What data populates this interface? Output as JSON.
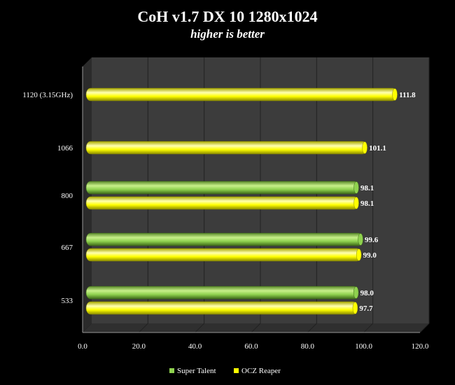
{
  "chart_data": {
    "type": "bar",
    "orientation": "horizontal",
    "title": "CoH v1.7 DX 10 1280x1024",
    "subtitle": "higher is better",
    "categories": [
      "1120 (3.15GHz)",
      "1066",
      "800",
      "667",
      "533"
    ],
    "series": [
      {
        "name": "Super Talent",
        "values": [
          null,
          null,
          98.1,
          99.6,
          98.0
        ],
        "labels": [
          "",
          "",
          "98.1",
          "99.6",
          "98.0"
        ],
        "color": "#8fd14f"
      },
      {
        "name": "OCZ Reaper",
        "values": [
          111.8,
          101.1,
          98.1,
          99.0,
          97.7
        ],
        "labels": [
          "111.8",
          "101.1",
          "98.1",
          "99.0",
          "97.7"
        ],
        "color": "#ffff00"
      }
    ],
    "xlim": [
      0,
      120
    ],
    "xticks": [
      "0.0",
      "20.0",
      "40.0",
      "60.0",
      "80.0",
      "100.0",
      "120.0"
    ],
    "grid": true,
    "legend_position": "bottom"
  }
}
